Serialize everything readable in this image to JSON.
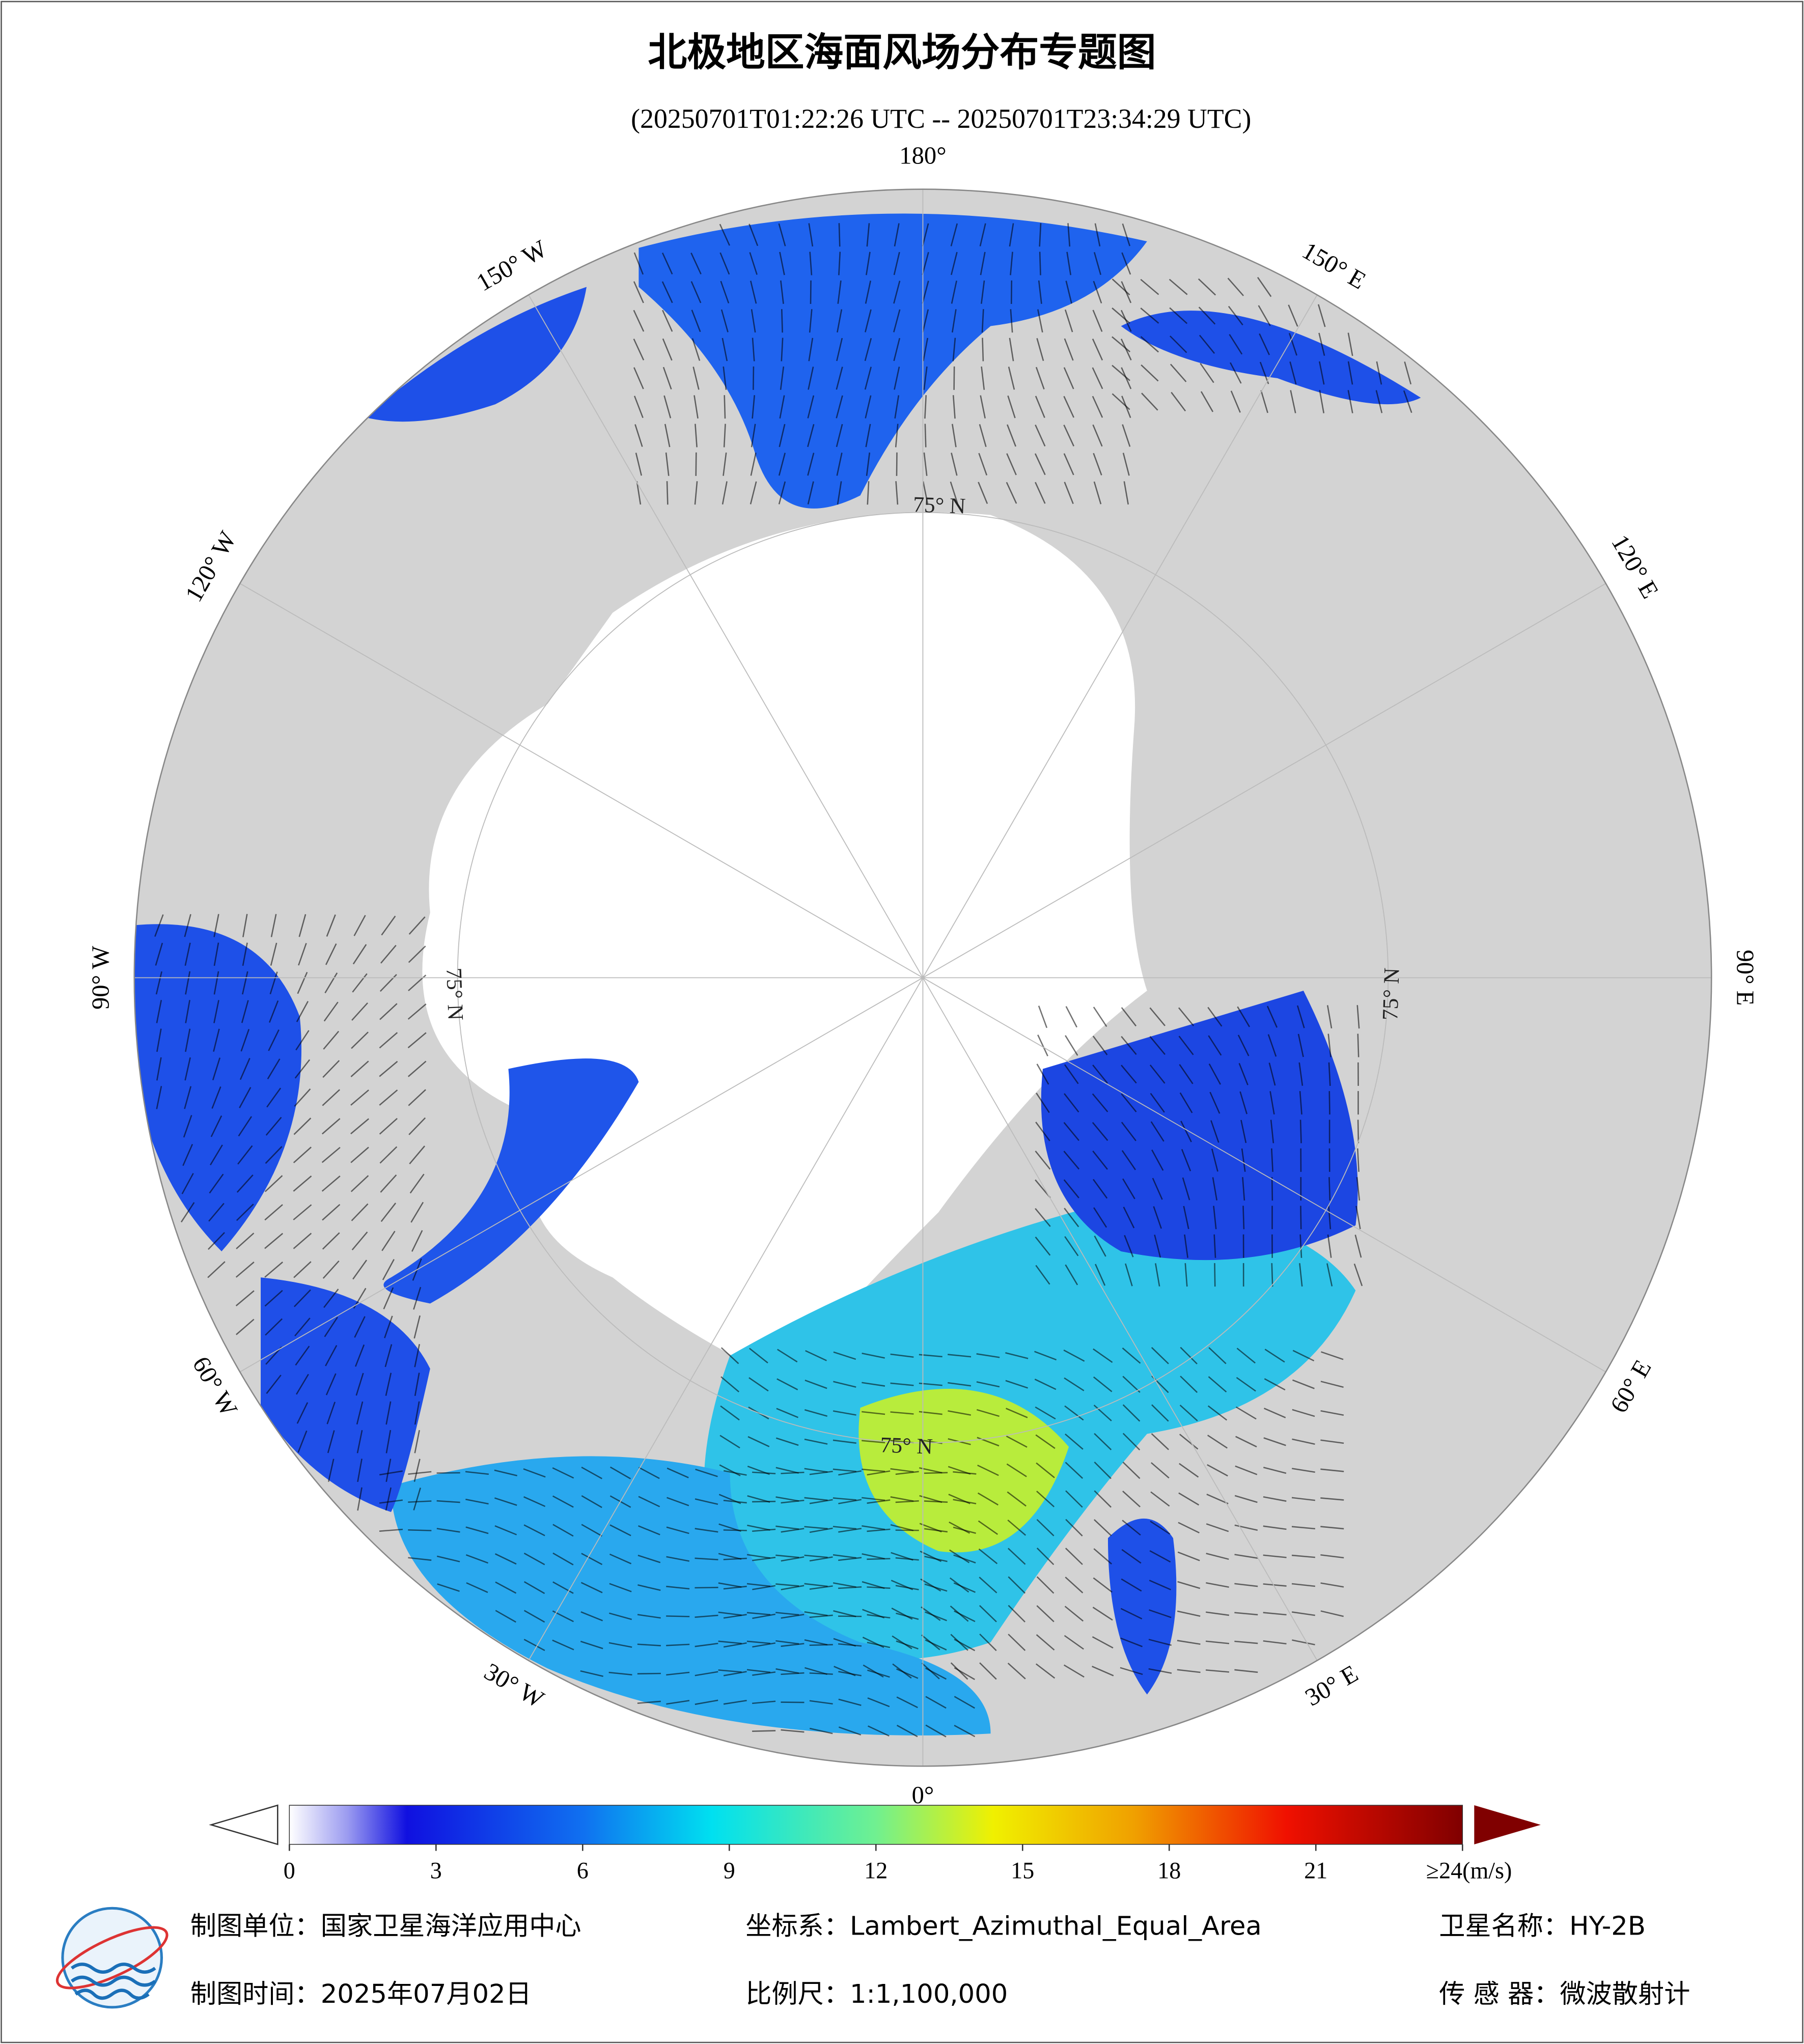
{
  "header": {
    "title": "北极地区海面风场分布专题图",
    "subtitle": "(20250701T01:22:26 UTC -- 20250701T23:34:29 UTC)"
  },
  "map": {
    "longitude_labels": [
      {
        "lon": 180,
        "label": "180°"
      },
      {
        "lon": 150,
        "label": "150° E"
      },
      {
        "lon": 120,
        "label": "120° E"
      },
      {
        "lon": 90,
        "label": "90° E"
      },
      {
        "lon": 60,
        "label": "60° E"
      },
      {
        "lon": 30,
        "label": "30° E"
      },
      {
        "lon": 0,
        "label": "0°"
      },
      {
        "lon": -30,
        "label": "30° W"
      },
      {
        "lon": -60,
        "label": "60° W"
      },
      {
        "lon": -90,
        "label": "90° W"
      },
      {
        "lon": -120,
        "label": "120° W"
      },
      {
        "lon": -150,
        "label": "150° W"
      }
    ],
    "latitude_labels": [
      {
        "lon": 178,
        "label": "75° N"
      },
      {
        "lon": 88,
        "label": "75° N"
      },
      {
        "lon": -2,
        "label": "75° N"
      },
      {
        "lon": -88,
        "label": "75° N"
      }
    ]
  },
  "colorbar": {
    "range": [
      0,
      24
    ],
    "ticks": [
      0,
      3,
      6,
      9,
      12,
      15,
      18,
      21,
      {
        "value": 24,
        "label": "≥24(m/s)"
      }
    ]
  },
  "footer": {
    "unit": "制图单位：国家卫星海洋应用中心",
    "date": "制图时间：2025年07月02日",
    "projection": "坐标系：Lambert_Azimuthal_Equal_Area",
    "scale": "比例尺：1:1,100,000",
    "satellite": "卫星名称：HY-2B",
    "sensor": "传 感 器：微波散射计"
  }
}
